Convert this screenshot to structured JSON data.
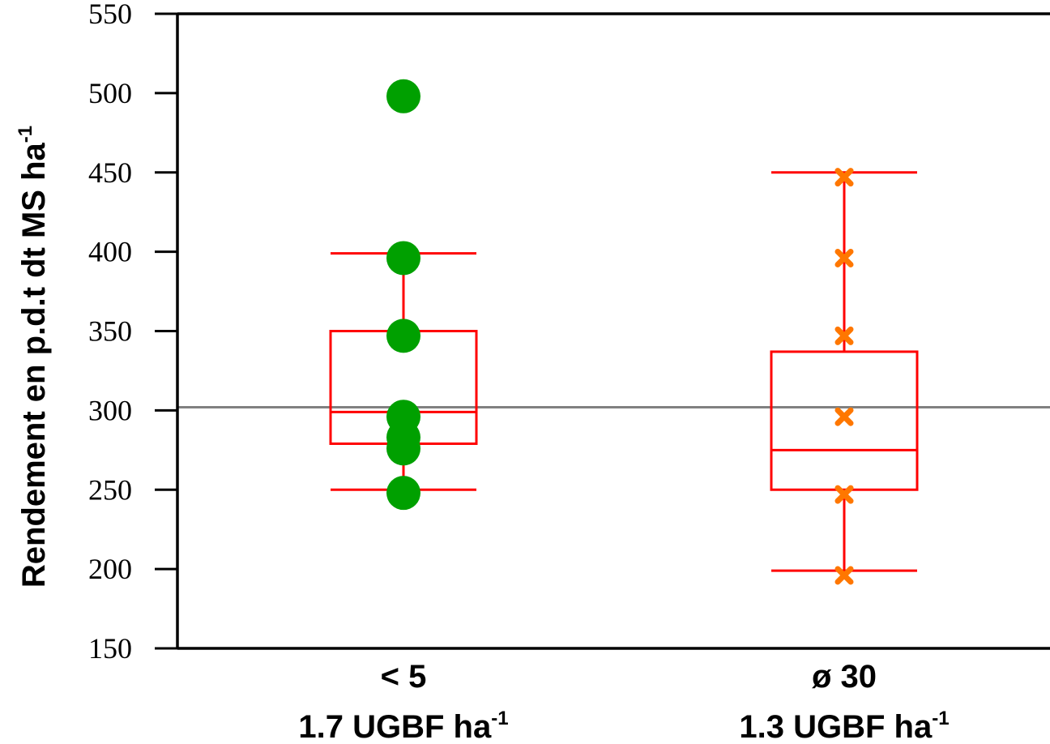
{
  "chart_data": {
    "type": "box",
    "ylabel": "Rendement en p.d.t  dt MS ha",
    "ylabel_sup": "-1",
    "ylim": [
      150,
      550
    ],
    "yticks": [
      "550",
      "500",
      "450",
      "400",
      "350",
      "300",
      "250",
      "200",
      "150"
    ],
    "reference_line": 302,
    "categories": [
      {
        "line1": "< 5",
        "line2": "1.7 UGBF ha",
        "line2_sup": "-1"
      },
      {
        "line1": "ø 30",
        "line2": "1.3 UGBF ha",
        "line2_sup": "-1"
      }
    ],
    "series": [
      {
        "marker": "circle",
        "color": "#00a000",
        "box": {
          "whisker_low": 250,
          "q1": 279,
          "median": 299,
          "q3": 350,
          "whisker_high": 399
        },
        "points": [
          498,
          396,
          347,
          296,
          283,
          276,
          248
        ]
      },
      {
        "marker": "x",
        "color": "#ff7700",
        "box": {
          "whisker_low": 199,
          "q1": 250,
          "median": 275,
          "q3": 337,
          "whisker_high": 450
        },
        "points": [
          447,
          396,
          347,
          296,
          247,
          196
        ]
      }
    ],
    "box_color": "#ff0000",
    "reference_color": "#808080"
  }
}
